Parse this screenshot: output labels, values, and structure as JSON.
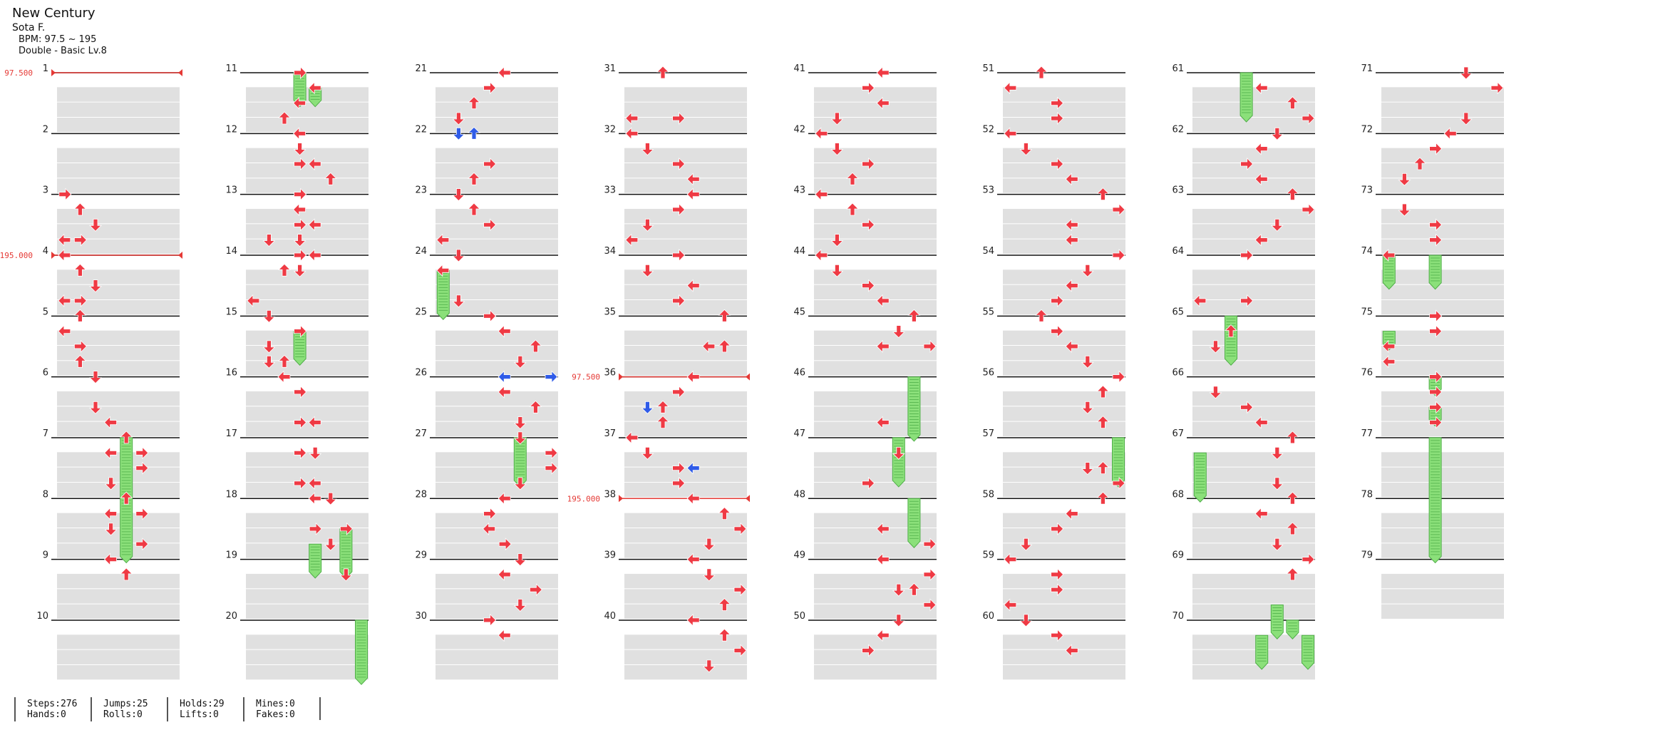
{
  "song": {
    "title": "New Century",
    "artist": "Sota F.",
    "bpm": "BPM: 97.5 ~ 195",
    "difficulty": "Double - Basic Lv.8"
  },
  "colors": {
    "arrow": "#ef3a44",
    "arrow_alt": "#2f5be8",
    "hold": "#8be07a",
    "hold_edge": "#4fae48",
    "bpm_line": "#e53935",
    "band": "#e0e0e0",
    "measure_line": "#111111"
  },
  "bpm_changes": [
    {
      "measure": 1,
      "label": "97.500"
    },
    {
      "measure": 4,
      "label": "195.000"
    },
    {
      "measure": 36,
      "label": "97.500"
    },
    {
      "measure": 38,
      "label": "195.000"
    }
  ],
  "stats": [
    {
      "a": "Steps:276",
      "b": "Hands:0"
    },
    {
      "a": "Jumps:25",
      "b": "Rolls:0"
    },
    {
      "a": "Holds:29",
      "b": "Lifts:0"
    },
    {
      "a": "Mines:0",
      "b": "Fakes:0"
    }
  ],
  "columns": [
    {
      "first_measure": 1,
      "last_measure": 10
    },
    {
      "first_measure": 11,
      "last_measure": 20
    },
    {
      "first_measure": 21,
      "last_measure": 30
    },
    {
      "first_measure": 31,
      "last_measure": 40
    },
    {
      "first_measure": 41,
      "last_measure": 50
    },
    {
      "first_measure": 51,
      "last_measure": 60
    },
    {
      "first_measure": 61,
      "last_measure": 70
    },
    {
      "first_measure": 71,
      "last_measure": 79
    }
  ],
  "notes": [
    [
      0,
      8,
      0,
      "right"
    ],
    [
      0,
      9,
      1,
      "up"
    ],
    [
      0,
      10,
      2,
      "down"
    ],
    [
      0,
      11,
      0,
      "left"
    ],
    [
      0,
      11,
      1,
      "right"
    ],
    [
      0,
      12,
      0,
      "left"
    ],
    [
      0,
      13,
      1,
      "up"
    ],
    [
      0,
      14,
      2,
      "down"
    ],
    [
      0,
      15,
      0,
      "left"
    ],
    [
      0,
      15,
      1,
      "right"
    ],
    [
      0,
      16,
      1,
      "up"
    ],
    [
      0,
      17,
      0,
      "left"
    ],
    [
      0,
      18,
      1,
      "right"
    ],
    [
      0,
      19,
      1,
      "up"
    ],
    [
      0,
      20,
      2,
      "down"
    ],
    [
      0,
      22,
      2,
      "down"
    ],
    [
      0,
      23,
      3,
      "left"
    ],
    [
      0,
      24,
      4,
      "up"
    ],
    [
      0,
      25,
      3,
      "left"
    ],
    [
      0,
      25,
      5,
      "right"
    ],
    [
      0,
      26,
      5,
      "right"
    ],
    [
      0,
      27,
      3,
      "down"
    ],
    [
      0,
      28,
      4,
      "up"
    ],
    [
      0,
      29,
      3,
      "left"
    ],
    [
      0,
      29,
      5,
      "right"
    ],
    [
      0,
      30,
      3,
      "down"
    ],
    [
      0,
      31,
      5,
      "right"
    ],
    [
      0,
      32,
      3,
      "left"
    ],
    [
      0,
      33,
      4,
      "up"
    ],
    [
      1,
      0,
      3,
      "right"
    ],
    [
      1,
      1,
      4,
      "left"
    ],
    [
      1,
      2,
      3,
      "left"
    ],
    [
      1,
      3,
      2,
      "up"
    ],
    [
      1,
      4,
      3,
      "left"
    ],
    [
      1,
      5,
      3,
      "down"
    ],
    [
      1,
      6,
      3,
      "right"
    ],
    [
      1,
      6,
      4,
      "left"
    ],
    [
      1,
      7,
      5,
      "up"
    ],
    [
      1,
      8,
      3,
      "right"
    ],
    [
      1,
      9,
      3,
      "left"
    ],
    [
      1,
      10,
      3,
      "right"
    ],
    [
      1,
      10,
      4,
      "left"
    ],
    [
      1,
      11,
      1,
      "down"
    ],
    [
      1,
      11,
      3,
      "down"
    ],
    [
      1,
      12,
      3,
      "right"
    ],
    [
      1,
      12,
      4,
      "left"
    ],
    [
      1,
      13,
      2,
      "up"
    ],
    [
      1,
      13,
      3,
      "down"
    ],
    [
      1,
      15,
      0,
      "left"
    ],
    [
      1,
      16,
      1,
      "down"
    ],
    [
      1,
      17,
      3,
      "right"
    ],
    [
      1,
      18,
      1,
      "down"
    ],
    [
      1,
      19,
      1,
      "down"
    ],
    [
      1,
      19,
      2,
      "up"
    ],
    [
      1,
      20,
      2,
      "left"
    ],
    [
      1,
      21,
      3,
      "right"
    ],
    [
      1,
      23,
      3,
      "right"
    ],
    [
      1,
      23,
      4,
      "left"
    ],
    [
      1,
      25,
      3,
      "right"
    ],
    [
      1,
      25,
      4,
      "down"
    ],
    [
      1,
      27,
      3,
      "right"
    ],
    [
      1,
      27,
      4,
      "left"
    ],
    [
      1,
      28,
      4,
      "left"
    ],
    [
      1,
      28,
      5,
      "down"
    ],
    [
      1,
      30,
      4,
      "right"
    ],
    [
      1,
      30,
      6,
      "right"
    ],
    [
      1,
      31,
      5,
      "down"
    ],
    [
      1,
      33,
      6,
      "down"
    ],
    [
      2,
      0,
      4,
      "left"
    ],
    [
      2,
      1,
      3,
      "right"
    ],
    [
      2,
      2,
      2,
      "up"
    ],
    [
      2,
      3,
      1,
      "down"
    ],
    [
      2,
      4,
      1,
      "down"
    ],
    [
      2,
      4,
      2,
      "up"
    ],
    [
      2,
      6,
      3,
      "right"
    ],
    [
      2,
      7,
      2,
      "up"
    ],
    [
      2,
      8,
      1,
      "down"
    ],
    [
      2,
      9,
      2,
      "up"
    ],
    [
      2,
      10,
      3,
      "right"
    ],
    [
      2,
      11,
      0,
      "left"
    ],
    [
      2,
      12,
      1,
      "down"
    ],
    [
      2,
      13,
      0,
      "left"
    ],
    [
      2,
      15,
      1,
      "down"
    ],
    [
      2,
      16,
      3,
      "right"
    ],
    [
      2,
      17,
      4,
      "left"
    ],
    [
      2,
      18,
      6,
      "up"
    ],
    [
      2,
      19,
      5,
      "down"
    ],
    [
      2,
      20,
      4,
      "left"
    ],
    [
      2,
      20,
      7,
      "right"
    ],
    [
      2,
      21,
      4,
      "left"
    ],
    [
      2,
      22,
      6,
      "up"
    ],
    [
      2,
      23,
      5,
      "down"
    ],
    [
      2,
      24,
      5,
      "down"
    ],
    [
      2,
      25,
      7,
      "right"
    ],
    [
      2,
      26,
      7,
      "right"
    ],
    [
      2,
      27,
      5,
      "down"
    ],
    [
      2,
      28,
      4,
      "left"
    ],
    [
      2,
      29,
      3,
      "right"
    ],
    [
      2,
      30,
      3,
      "left"
    ],
    [
      2,
      31,
      4,
      "right"
    ],
    [
      2,
      32,
      5,
      "down"
    ],
    [
      2,
      33,
      4,
      "left"
    ],
    [
      2,
      34,
      6,
      "right"
    ],
    [
      2,
      35,
      5,
      "down"
    ],
    [
      2,
      36,
      3,
      "right"
    ],
    [
      2,
      37,
      4,
      "left"
    ],
    [
      3,
      0,
      2,
      "up"
    ],
    [
      3,
      3,
      0,
      "left"
    ],
    [
      3,
      3,
      3,
      "right"
    ],
    [
      3,
      4,
      0,
      "left"
    ],
    [
      3,
      5,
      1,
      "down"
    ],
    [
      3,
      6,
      3,
      "right"
    ],
    [
      3,
      7,
      4,
      "left"
    ],
    [
      3,
      8,
      4,
      "left"
    ],
    [
      3,
      9,
      3,
      "right"
    ],
    [
      3,
      10,
      1,
      "down"
    ],
    [
      3,
      11,
      0,
      "left"
    ],
    [
      3,
      12,
      3,
      "right"
    ],
    [
      3,
      13,
      1,
      "down"
    ],
    [
      3,
      14,
      4,
      "left"
    ],
    [
      3,
      15,
      3,
      "right"
    ],
    [
      3,
      16,
      6,
      "up"
    ],
    [
      3,
      18,
      5,
      "left"
    ],
    [
      3,
      18,
      6,
      "up"
    ],
    [
      3,
      20,
      4,
      "left"
    ],
    [
      3,
      21,
      3,
      "right"
    ],
    [
      3,
      22,
      1,
      "down"
    ],
    [
      3,
      22,
      2,
      "up"
    ],
    [
      3,
      23,
      2,
      "up"
    ],
    [
      3,
      24,
      0,
      "left"
    ],
    [
      3,
      25,
      1,
      "down"
    ],
    [
      3,
      26,
      3,
      "right"
    ],
    [
      3,
      26,
      4,
      "left"
    ],
    [
      3,
      27,
      3,
      "right"
    ],
    [
      3,
      28,
      4,
      "left"
    ],
    [
      3,
      29,
      6,
      "up"
    ],
    [
      3,
      30,
      7,
      "right"
    ],
    [
      3,
      31,
      5,
      "down"
    ],
    [
      3,
      32,
      4,
      "left"
    ],
    [
      3,
      33,
      5,
      "down"
    ],
    [
      3,
      34,
      7,
      "right"
    ],
    [
      3,
      35,
      6,
      "up"
    ],
    [
      3,
      36,
      4,
      "left"
    ],
    [
      3,
      37,
      6,
      "up"
    ],
    [
      3,
      38,
      7,
      "right"
    ],
    [
      3,
      39,
      5,
      "down"
    ],
    [
      4,
      0,
      4,
      "left"
    ],
    [
      4,
      1,
      3,
      "right"
    ],
    [
      4,
      2,
      4,
      "left"
    ],
    [
      4,
      3,
      1,
      "down"
    ],
    [
      4,
      4,
      0,
      "left"
    ],
    [
      4,
      5,
      1,
      "down"
    ],
    [
      4,
      6,
      3,
      "right"
    ],
    [
      4,
      7,
      2,
      "up"
    ],
    [
      4,
      8,
      0,
      "left"
    ],
    [
      4,
      9,
      2,
      "up"
    ],
    [
      4,
      10,
      3,
      "right"
    ],
    [
      4,
      11,
      1,
      "down"
    ],
    [
      4,
      12,
      0,
      "left"
    ],
    [
      4,
      13,
      1,
      "down"
    ],
    [
      4,
      14,
      3,
      "right"
    ],
    [
      4,
      15,
      4,
      "left"
    ],
    [
      4,
      16,
      6,
      "up"
    ],
    [
      4,
      17,
      5,
      "down"
    ],
    [
      4,
      18,
      4,
      "left"
    ],
    [
      4,
      18,
      7,
      "right"
    ],
    [
      4,
      23,
      4,
      "left"
    ],
    [
      4,
      25,
      5,
      "down"
    ],
    [
      4,
      27,
      3,
      "right"
    ],
    [
      4,
      30,
      4,
      "left"
    ],
    [
      4,
      31,
      7,
      "right"
    ],
    [
      4,
      32,
      4,
      "left"
    ],
    [
      4,
      33,
      7,
      "right"
    ],
    [
      4,
      34,
      5,
      "down"
    ],
    [
      4,
      34,
      6,
      "up"
    ],
    [
      4,
      35,
      7,
      "right"
    ],
    [
      4,
      36,
      5,
      "down"
    ],
    [
      4,
      37,
      4,
      "left"
    ],
    [
      4,
      38,
      3,
      "right"
    ],
    [
      5,
      0,
      2,
      "up"
    ],
    [
      5,
      1,
      0,
      "left"
    ],
    [
      5,
      2,
      3,
      "right"
    ],
    [
      5,
      3,
      3,
      "right"
    ],
    [
      5,
      4,
      0,
      "left"
    ],
    [
      5,
      5,
      1,
      "down"
    ],
    [
      5,
      6,
      3,
      "right"
    ],
    [
      5,
      7,
      4,
      "left"
    ],
    [
      5,
      8,
      6,
      "up"
    ],
    [
      5,
      9,
      7,
      "right"
    ],
    [
      5,
      10,
      4,
      "left"
    ],
    [
      5,
      11,
      4,
      "left"
    ],
    [
      5,
      12,
      7,
      "right"
    ],
    [
      5,
      13,
      5,
      "down"
    ],
    [
      5,
      14,
      4,
      "left"
    ],
    [
      5,
      15,
      3,
      "right"
    ],
    [
      5,
      16,
      2,
      "up"
    ],
    [
      5,
      17,
      3,
      "right"
    ],
    [
      5,
      18,
      4,
      "left"
    ],
    [
      5,
      19,
      5,
      "down"
    ],
    [
      5,
      20,
      7,
      "right"
    ],
    [
      5,
      21,
      6,
      "up"
    ],
    [
      5,
      22,
      5,
      "down"
    ],
    [
      5,
      23,
      6,
      "up"
    ],
    [
      5,
      26,
      5,
      "down"
    ],
    [
      5,
      26,
      6,
      "up"
    ],
    [
      5,
      27,
      7,
      "right"
    ],
    [
      5,
      28,
      6,
      "up"
    ],
    [
      5,
      29,
      4,
      "left"
    ],
    [
      5,
      30,
      3,
      "right"
    ],
    [
      5,
      31,
      1,
      "down"
    ],
    [
      5,
      32,
      0,
      "left"
    ],
    [
      5,
      33,
      3,
      "right"
    ],
    [
      5,
      34,
      3,
      "right"
    ],
    [
      5,
      35,
      0,
      "left"
    ],
    [
      5,
      36,
      1,
      "down"
    ],
    [
      5,
      37,
      3,
      "right"
    ],
    [
      5,
      38,
      4,
      "left"
    ],
    [
      6,
      1,
      4,
      "left"
    ],
    [
      6,
      2,
      6,
      "up"
    ],
    [
      6,
      3,
      7,
      "right"
    ],
    [
      6,
      4,
      5,
      "down"
    ],
    [
      6,
      5,
      4,
      "left"
    ],
    [
      6,
      6,
      3,
      "right"
    ],
    [
      6,
      7,
      4,
      "left"
    ],
    [
      6,
      8,
      6,
      "up"
    ],
    [
      6,
      9,
      7,
      "right"
    ],
    [
      6,
      10,
      5,
      "down"
    ],
    [
      6,
      11,
      4,
      "left"
    ],
    [
      6,
      12,
      3,
      "right"
    ],
    [
      6,
      15,
      0,
      "left"
    ],
    [
      6,
      15,
      3,
      "right"
    ],
    [
      6,
      17,
      2,
      "up"
    ],
    [
      6,
      18,
      1,
      "down"
    ],
    [
      6,
      21,
      1,
      "down"
    ],
    [
      6,
      22,
      3,
      "right"
    ],
    [
      6,
      23,
      4,
      "left"
    ],
    [
      6,
      24,
      6,
      "up"
    ],
    [
      6,
      25,
      5,
      "down"
    ],
    [
      6,
      27,
      5,
      "down"
    ],
    [
      6,
      28,
      6,
      "up"
    ],
    [
      6,
      29,
      4,
      "left"
    ],
    [
      6,
      30,
      6,
      "up"
    ],
    [
      6,
      31,
      5,
      "down"
    ],
    [
      6,
      32,
      7,
      "right"
    ],
    [
      6,
      33,
      6,
      "up"
    ],
    [
      7,
      0,
      5,
      "down"
    ],
    [
      7,
      1,
      7,
      "right"
    ],
    [
      7,
      3,
      5,
      "down"
    ],
    [
      7,
      4,
      4,
      "left"
    ],
    [
      7,
      5,
      3,
      "right"
    ],
    [
      7,
      6,
      2,
      "up"
    ],
    [
      7,
      7,
      1,
      "down"
    ],
    [
      7,
      9,
      1,
      "down"
    ],
    [
      7,
      10,
      3,
      "right"
    ],
    [
      7,
      11,
      3,
      "right"
    ],
    [
      7,
      12,
      0,
      "left"
    ],
    [
      7,
      16,
      3,
      "right"
    ],
    [
      7,
      17,
      3,
      "right"
    ],
    [
      7,
      18,
      0,
      "left"
    ],
    [
      7,
      19,
      0,
      "left"
    ],
    [
      7,
      20,
      3,
      "right"
    ],
    [
      7,
      21,
      3,
      "right"
    ],
    [
      7,
      22,
      3,
      "right"
    ],
    [
      7,
      23,
      3,
      "right"
    ]
  ],
  "alt_notes": [
    [
      2,
      4,
      1,
      "down"
    ],
    [
      2,
      4,
      2,
      "up"
    ],
    [
      2,
      20,
      4,
      "left"
    ],
    [
      2,
      20,
      7,
      "right"
    ],
    [
      2,
      27,
      7,
      "right"
    ],
    [
      3,
      22,
      1,
      "down"
    ],
    [
      3,
      26,
      4,
      "left"
    ],
    [
      5,
      2,
      0,
      "left"
    ],
    [
      5,
      10,
      7,
      "right"
    ],
    [
      5,
      34,
      0,
      "left"
    ],
    [
      6,
      32,
      5,
      "down"
    ],
    [
      6,
      32,
      6,
      "up"
    ],
    [
      7,
      8,
      1,
      "down"
    ],
    [
      7,
      8,
      2,
      "up"
    ]
  ],
  "holds": [
    [
      0,
      24,
      32,
      4
    ],
    [
      1,
      0,
      2,
      3
    ],
    [
      1,
      1,
      2,
      4
    ],
    [
      1,
      17,
      19,
      3
    ],
    [
      1,
      31,
      33,
      4
    ],
    [
      1,
      30,
      33,
      6
    ],
    [
      1,
      36,
      40,
      7
    ],
    [
      2,
      13,
      16,
      0
    ],
    [
      2,
      24,
      27,
      5
    ],
    [
      4,
      20,
      24,
      6
    ],
    [
      4,
      24,
      27,
      5
    ],
    [
      4,
      28,
      31,
      6
    ],
    [
      5,
      24,
      27,
      7
    ],
    [
      6,
      0,
      3,
      3
    ],
    [
      6,
      16,
      19,
      2
    ],
    [
      6,
      25,
      28,
      0
    ],
    [
      6,
      35,
      37,
      5
    ],
    [
      6,
      36,
      37,
      6
    ],
    [
      6,
      37,
      39,
      4
    ],
    [
      6,
      37,
      39,
      7
    ],
    [
      7,
      12,
      14,
      0
    ],
    [
      7,
      12,
      14,
      3
    ],
    [
      7,
      20,
      21,
      3
    ],
    [
      7,
      17,
      18,
      0
    ],
    [
      7,
      22,
      23,
      3
    ],
    [
      7,
      24,
      32,
      3
    ]
  ]
}
